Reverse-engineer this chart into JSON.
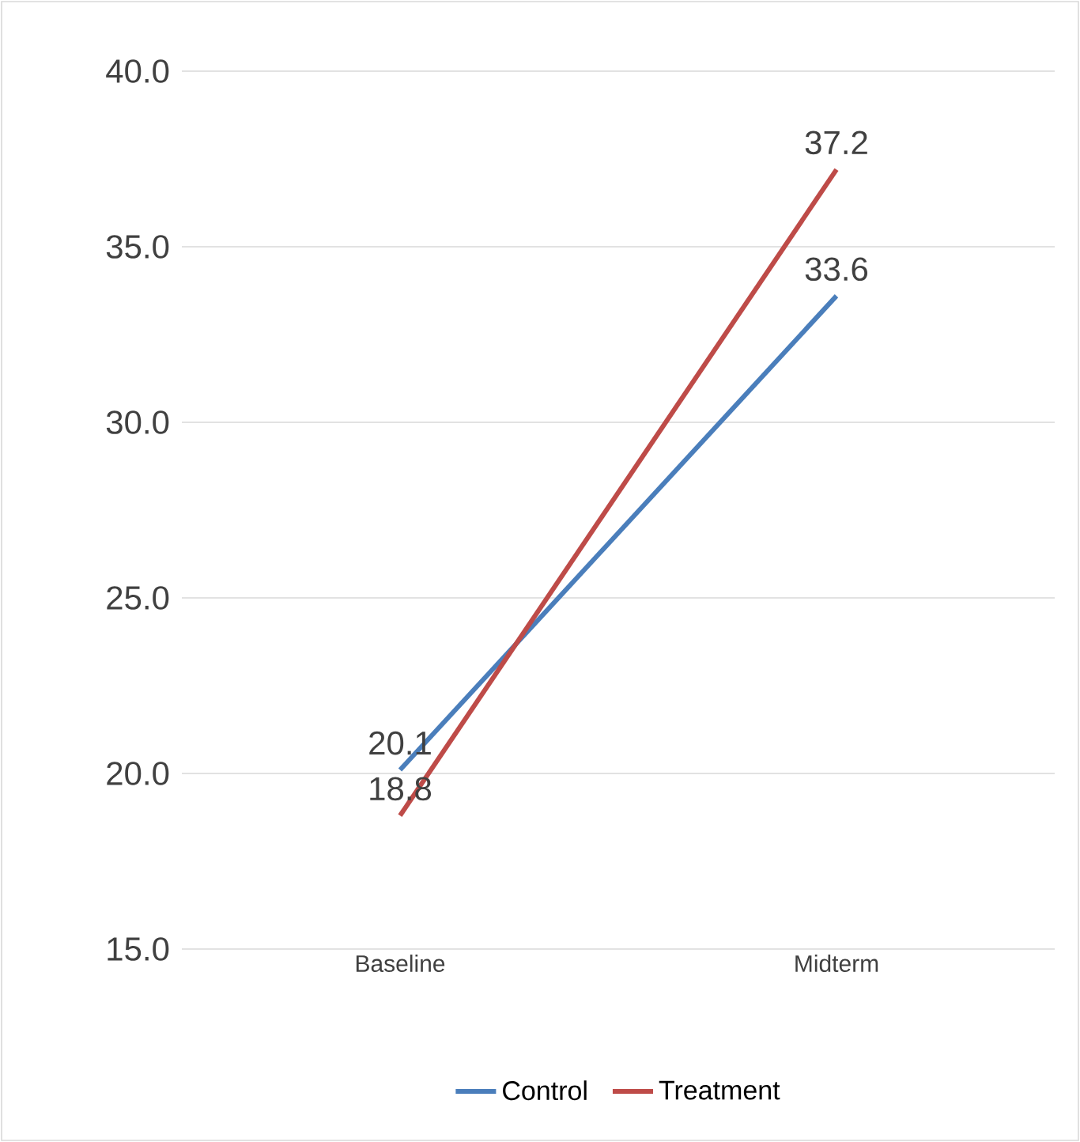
{
  "chart_data": {
    "type": "line",
    "categories": [
      "Baseline",
      "Midterm"
    ],
    "series": [
      {
        "name": "Control",
        "color": "#4a7ebb",
        "values": [
          20.1,
          33.6
        ]
      },
      {
        "name": "Treatment",
        "color": "#be4b48",
        "values": [
          18.8,
          37.2
        ]
      }
    ],
    "ylim": [
      15,
      40
    ],
    "yticks": [
      {
        "value": 15,
        "label": "15.0"
      },
      {
        "value": 20,
        "label": "20.0"
      },
      {
        "value": 25,
        "label": "25.0"
      },
      {
        "value": 30,
        "label": "30.0"
      },
      {
        "value": 35,
        "label": "35.0"
      },
      {
        "value": 40,
        "label": "40.0"
      }
    ],
    "grid": "y",
    "legend": "bottom",
    "data_labels": true,
    "marker": "none",
    "line_style": "solid"
  }
}
